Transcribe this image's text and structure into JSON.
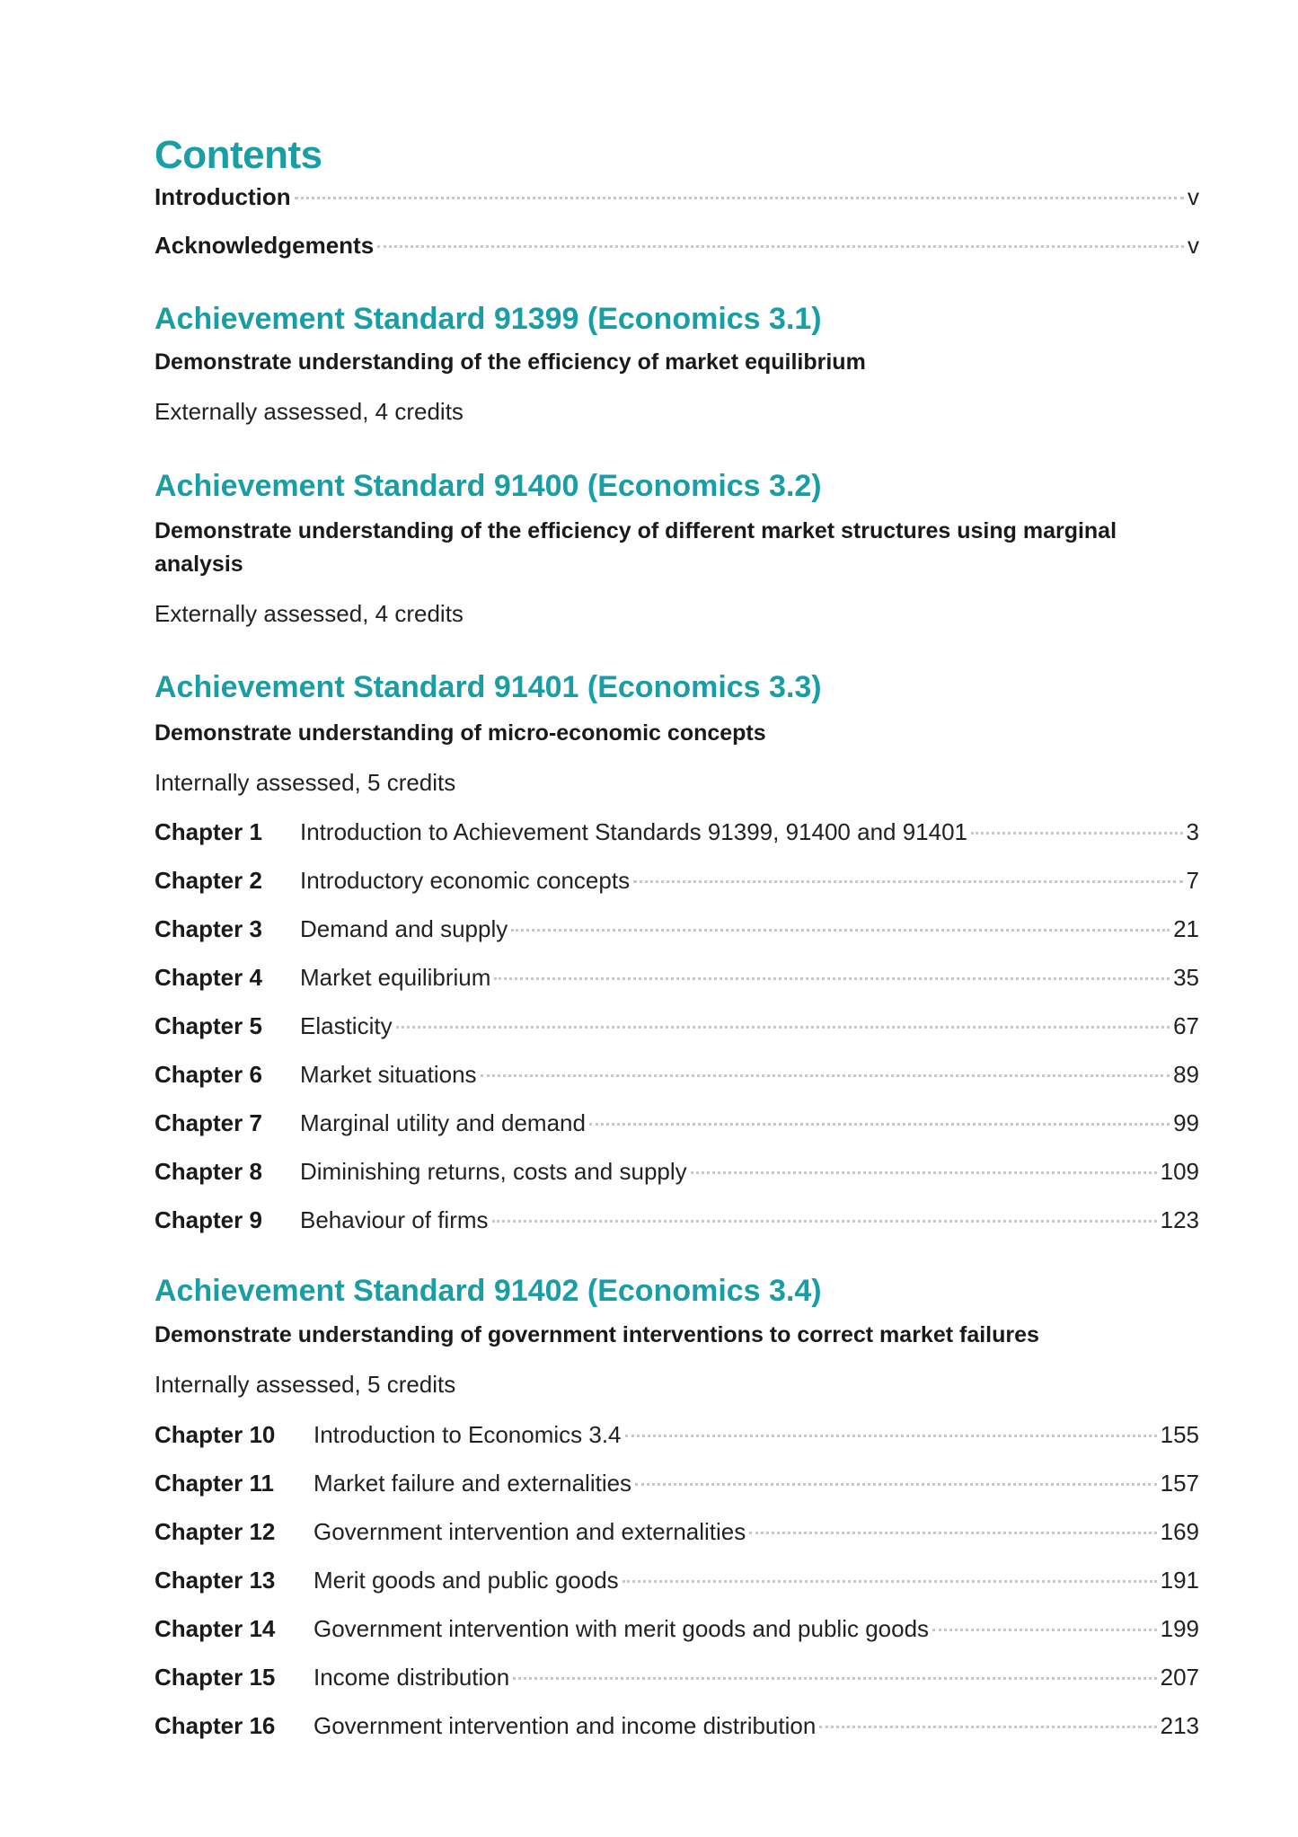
{
  "accent_color": "#1a9ea6",
  "title": "Contents",
  "front_matter": [
    {
      "label": "Introduction",
      "page": "v"
    },
    {
      "label": "Acknowledgements",
      "page": "v"
    }
  ],
  "standards": [
    {
      "heading": "Achievement Standard 91399 (Economics 3.1)",
      "description": "Demonstrate understanding of the efficiency of market equilibrium",
      "assessment": "Externally assessed, 4 credits",
      "chapters": []
    },
    {
      "heading": "Achievement Standard 91400 (Economics 3.2)",
      "description": "Demonstrate understanding of the efficiency of different market structures using marginal analysis",
      "assessment": "Externally assessed, 4 credits",
      "chapters": []
    },
    {
      "heading": "Achievement Standard 91401 (Economics 3.3)",
      "description": "Demonstrate understanding of micro-economic concepts",
      "assessment": "Internally assessed, 5 credits",
      "chapters": [
        {
          "label": "Chapter 1",
          "title": "Introduction to Achievement Standards 91399, 91400 and 91401",
          "page": "3"
        },
        {
          "label": "Chapter 2",
          "title": "Introductory economic concepts",
          "page": "7"
        },
        {
          "label": "Chapter 3",
          "title": "Demand and supply",
          "page": "21"
        },
        {
          "label": "Chapter 4",
          "title": "Market equilibrium",
          "page": "35"
        },
        {
          "label": "Chapter 5",
          "title": "Elasticity",
          "page": "67"
        },
        {
          "label": "Chapter 6",
          "title": "Market situations",
          "page": "89"
        },
        {
          "label": "Chapter 7",
          "title": "Marginal utility and demand",
          "page": "99"
        },
        {
          "label": "Chapter 8",
          "title": "Diminishing returns, costs and supply",
          "page": "109"
        },
        {
          "label": "Chapter 9",
          "title": "Behaviour of firms",
          "page": "123"
        }
      ]
    },
    {
      "heading": "Achievement Standard 91402 (Economics 3.4)",
      "description": "Demonstrate understanding of government interventions to correct market failures",
      "assessment": "Internally assessed, 5 credits",
      "chapters": [
        {
          "label": "Chapter 10",
          "title": "Introduction to Economics 3.4",
          "page": "155"
        },
        {
          "label": "Chapter 11",
          "title": "Market failure and externalities",
          "page": "157"
        },
        {
          "label": "Chapter 12",
          "title": "Government intervention and externalities",
          "page": "169"
        },
        {
          "label": "Chapter 13",
          "title": "Merit goods and public goods",
          "page": "191"
        },
        {
          "label": "Chapter 14",
          "title": "Government intervention with merit goods and public goods",
          "page": "199"
        },
        {
          "label": "Chapter 15",
          "title": "Income distribution",
          "page": "207"
        },
        {
          "label": "Chapter 16",
          "title": "Government intervention and income distribution",
          "page": "213"
        }
      ]
    }
  ]
}
